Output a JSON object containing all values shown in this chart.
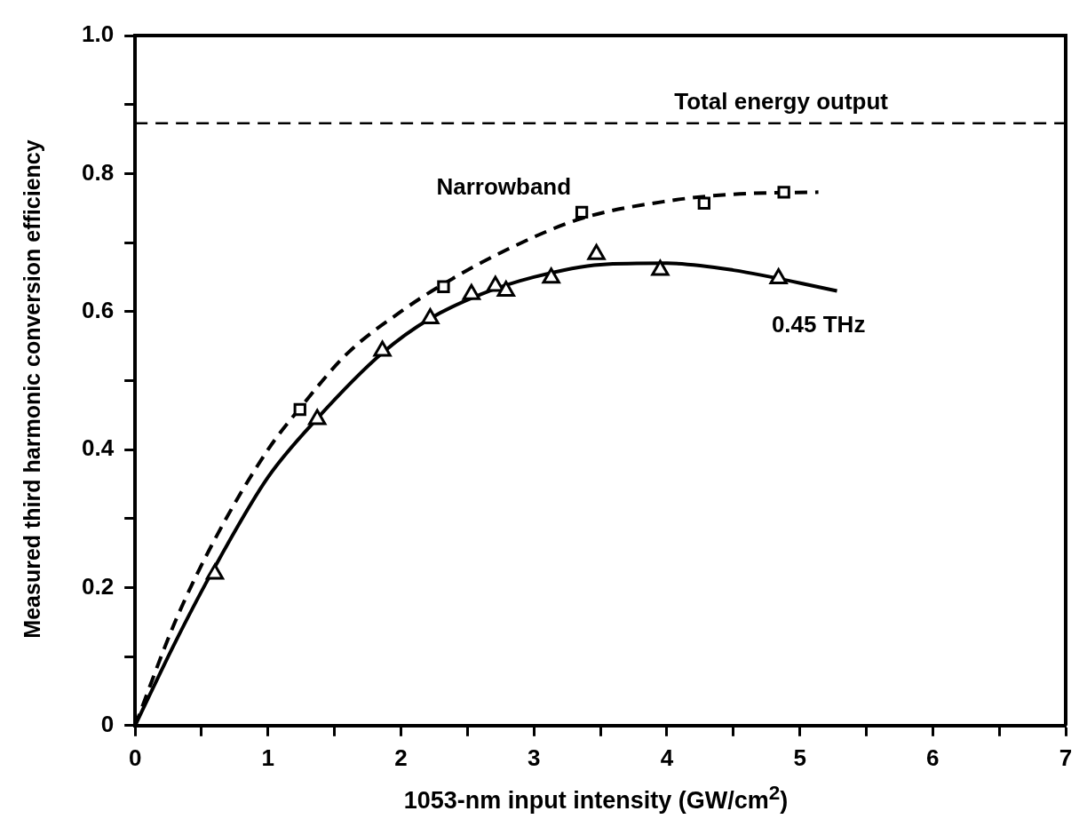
{
  "chart_data": {
    "type": "scatter",
    "xlabel": "1053-nm input intensity (GW/cm$^{2}$)",
    "ylabel": "Measured third harmonic conversion efficiency",
    "xlim": [
      0,
      7
    ],
    "ylim": [
      0,
      1
    ],
    "xticks": [
      0,
      {
        "value": 0.5,
        "label": null
      },
      1,
      {
        "value": 1.5,
        "label": null
      },
      2,
      {
        "value": 2.5,
        "label": null
      },
      3,
      {
        "value": 3.5,
        "label": null
      },
      4,
      {
        "value": 4.5,
        "label": null
      },
      5,
      {
        "value": 5.5,
        "label": null
      },
      6,
      {
        "value": 6.5,
        "label": null
      },
      7
    ],
    "yticks": [
      0,
      {
        "value": 0.1,
        "label": null
      },
      0.2,
      {
        "value": 0.3,
        "label": null
      },
      0.4,
      {
        "value": 0.5,
        "label": null
      },
      0.6,
      {
        "value": 0.7,
        "label": null
      },
      0.8,
      {
        "value": 0.9,
        "label": null
      },
      {
        "value": 1,
        "label": "1.0"
      }
    ],
    "grid": false,
    "legend": false,
    "series": [
      {
        "name": "Narrowband",
        "type": "scatter",
        "marker": "square",
        "color": "#000000",
        "x": [
          1.24,
          2.32,
          3.36,
          4.28,
          4.88
        ],
        "values": [
          0.458,
          0.636,
          0.744,
          0.757,
          0.773
        ]
      },
      {
        "type": "line",
        "line_style": "dashed",
        "marker": "none",
        "color": "#000000",
        "x": [
          0,
          0.3,
          0.6,
          1,
          1.24,
          1.6,
          2,
          2.32,
          2.8,
          3.36,
          4,
          4.5,
          5.14
        ],
        "values": [
          0,
          0.15,
          0.27,
          0.4,
          0.46,
          0.54,
          0.6,
          0.64,
          0.69,
          0.735,
          0.76,
          0.77,
          0.773
        ]
      },
      {
        "name": "0.45 THz",
        "type": "scatter",
        "marker": "triangle",
        "color": "#000000",
        "x": [
          0.6,
          1.37,
          1.86,
          2.22,
          2.53,
          2.71,
          2.79,
          3.13,
          3.47,
          3.95,
          4.84
        ],
        "values": [
          0.22,
          0.444,
          0.543,
          0.59,
          0.625,
          0.637,
          0.63,
          0.649,
          0.683,
          0.66,
          0.648
        ]
      },
      {
        "type": "line",
        "line_style": "solid",
        "marker": "none",
        "color": "#000000",
        "x": [
          0,
          0.3,
          0.6,
          1,
          1.37,
          1.86,
          2.22,
          2.6,
          3,
          3.5,
          4,
          4.5,
          5.28
        ],
        "values": [
          0,
          0.12,
          0.23,
          0.36,
          0.445,
          0.54,
          0.59,
          0.625,
          0.65,
          0.668,
          0.67,
          0.66,
          0.63
        ]
      }
    ],
    "ref_lines": [
      {
        "axis": "y",
        "value": 0.873,
        "label": "Total energy output",
        "line_style": "dashed",
        "color": "#000000"
      }
    ]
  }
}
